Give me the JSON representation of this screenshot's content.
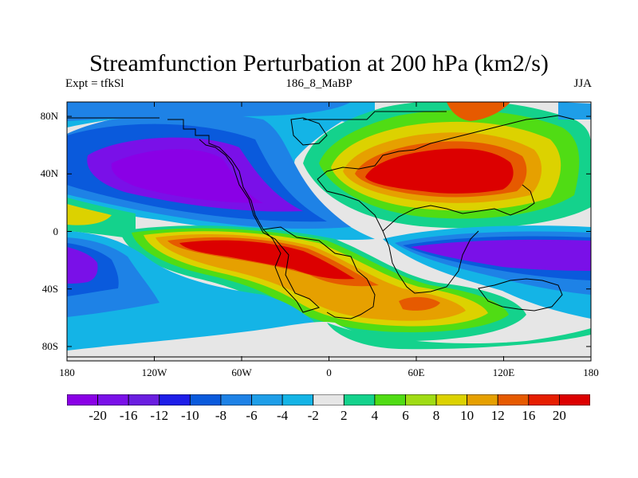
{
  "header": {
    "title": "Streamfunction Perturbation at 200 hPa (km2/s)",
    "left_label": "Expt = tfkSl",
    "center_label": "186_8_MaBP",
    "right_label": "JJA"
  },
  "map": {
    "projection": "cylindrical-equidistant",
    "lon_range": [
      -180,
      180
    ],
    "lat_range": [
      -90,
      90
    ],
    "lat_ticks": [
      {
        "value": 80,
        "label": "80N"
      },
      {
        "value": 40,
        "label": "40N"
      },
      {
        "value": 0,
        "label": "0"
      },
      {
        "value": -40,
        "label": "40S"
      },
      {
        "value": -80,
        "label": "80S"
      }
    ],
    "lon_ticks": [
      {
        "value": -180,
        "label": "180"
      },
      {
        "value": -120,
        "label": "120W"
      },
      {
        "value": -60,
        "label": "60W"
      },
      {
        "value": 0,
        "label": "0"
      },
      {
        "value": 60,
        "label": "60E"
      },
      {
        "value": 120,
        "label": "120E"
      },
      {
        "value": 180,
        "label": "180"
      }
    ],
    "background_color": "#e6e6e6",
    "coastline_color": "#000000"
  },
  "colorbar": {
    "levels": [
      "-20",
      "-16",
      "-12",
      "-10",
      "-8",
      "-6",
      "-4",
      "-2",
      "2",
      "4",
      "6",
      "8",
      "10",
      "12",
      "16",
      "20"
    ],
    "colors": [
      "#8a00e6",
      "#7a10e8",
      "#6a1ee0",
      "#1e1ee8",
      "#0a5adc",
      "#1e82e6",
      "#1e9ee8",
      "#14b4e6",
      "#e6e6e6",
      "#14d28c",
      "#50dc14",
      "#a0dc14",
      "#dcd200",
      "#e6a000",
      "#e65a00",
      "#e61e00",
      "#dc0000"
    ]
  }
}
